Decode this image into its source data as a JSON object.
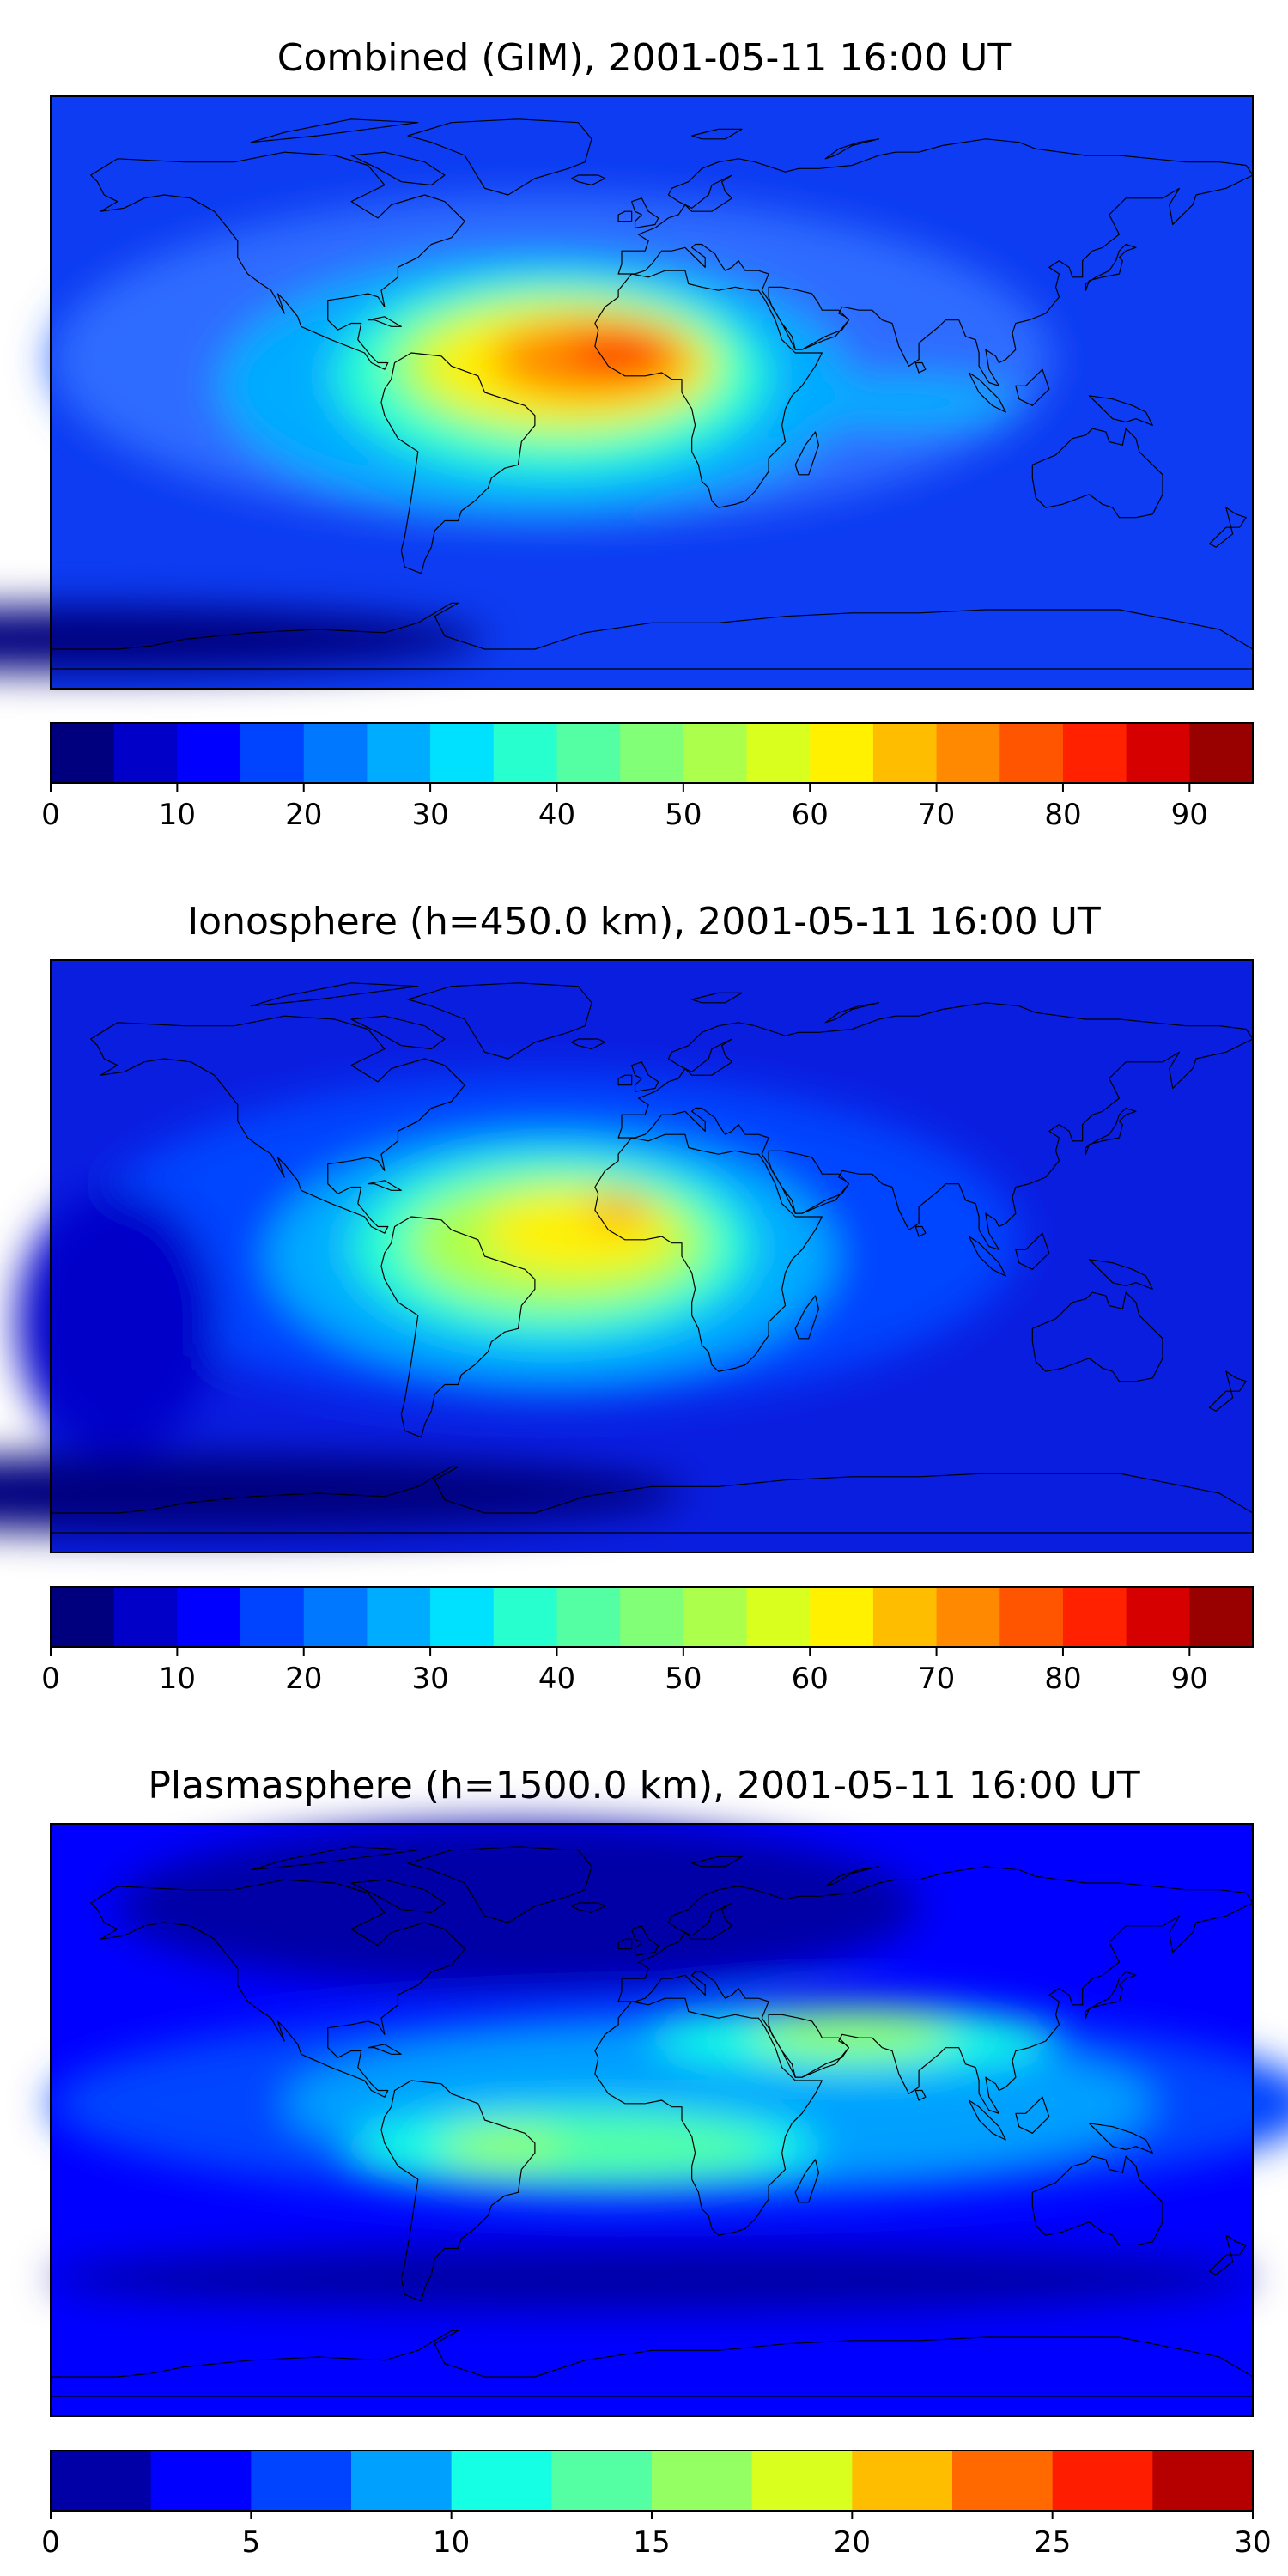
{
  "panels": [
    {
      "title": "Combined (GIM), 2001-05-11 16:00 UT",
      "colorbar": {
        "colors": [
          "#00007f",
          "#0000c9",
          "#0000ff",
          "#0044ff",
          "#0078ff",
          "#00acff",
          "#00e1ff",
          "#28ffcf",
          "#54ffa3",
          "#80ff77",
          "#acff4b",
          "#d8ff1e",
          "#fff100",
          "#ffbd00",
          "#ff8900",
          "#ff5500",
          "#ff2100",
          "#d70000",
          "#990000"
        ],
        "ticks": [
          "0",
          "10",
          "20",
          "30",
          "40",
          "50",
          "60",
          "70",
          "80",
          "90"
        ],
        "tick_values": [
          0,
          10,
          20,
          30,
          40,
          50,
          60,
          70,
          80,
          90
        ],
        "range": [
          0,
          95
        ]
      },
      "map": {
        "background": "#0d3cf2",
        "blobs": [
          {
            "c": "#2d6cff",
            "lon": -30,
            "lat": 10,
            "rlon": 150,
            "rlat": 50
          },
          {
            "c": "#00acff",
            "lon": -35,
            "lat": 2,
            "rlon": 95,
            "rlat": 40
          },
          {
            "c": "#28ffcf",
            "lon": -30,
            "lat": 5,
            "rlon": 65,
            "rlat": 30
          },
          {
            "c": "#acff4b",
            "lon": -28,
            "lat": 8,
            "rlon": 50,
            "rlat": 22
          },
          {
            "c": "#fff100",
            "lon": -25,
            "lat": 8,
            "rlon": 42,
            "rlat": 17
          },
          {
            "c": "#ff8900",
            "lon": -18,
            "lat": 10,
            "rlon": 30,
            "rlat": 12
          },
          {
            "c": "#ff2100",
            "lon": -10,
            "lat": 13,
            "rlon": 15,
            "rlat": 6
          },
          {
            "c": "#00acff",
            "lon": 75,
            "lat": -3,
            "rlon": 35,
            "rlat": 8
          },
          {
            "c": "#00007f",
            "lon": -170,
            "lat": -75,
            "rlon": 120,
            "rlat": 10
          }
        ]
      }
    },
    {
      "title": "Ionosphere  (h=450.0 km), 2001-05-11 16:00 UT",
      "colorbar": {
        "colors": [
          "#00007f",
          "#0000c9",
          "#0000ff",
          "#0044ff",
          "#0078ff",
          "#00acff",
          "#00e1ff",
          "#28ffcf",
          "#54ffa3",
          "#80ff77",
          "#acff4b",
          "#d8ff1e",
          "#fff100",
          "#ffbd00",
          "#ff8900",
          "#ff5500",
          "#ff2100",
          "#d70000",
          "#990000"
        ],
        "ticks": [
          "0",
          "10",
          "20",
          "30",
          "40",
          "50",
          "60",
          "70",
          "80",
          "90"
        ],
        "tick_values": [
          0,
          10,
          20,
          30,
          40,
          50,
          60,
          70,
          80,
          90
        ],
        "range": [
          0,
          95
        ]
      },
      "map": {
        "background": "#0a1ee0",
        "blobs": [
          {
            "c": "#0044ff",
            "lon": -30,
            "lat": 5,
            "rlon": 140,
            "rlat": 50
          },
          {
            "c": "#00acff",
            "lon": -30,
            "lat": 0,
            "rlon": 85,
            "rlat": 38
          },
          {
            "c": "#28ffcf",
            "lon": -30,
            "lat": 3,
            "rlon": 60,
            "rlat": 28
          },
          {
            "c": "#acff4b",
            "lon": -28,
            "lat": 4,
            "rlon": 45,
            "rlat": 20
          },
          {
            "c": "#fff100",
            "lon": -22,
            "lat": 7,
            "rlon": 28,
            "rlat": 12
          },
          {
            "c": "#ff8900",
            "lon": -10,
            "lat": 14,
            "rlon": 10,
            "rlat": 4
          },
          {
            "c": "#0000c9",
            "lon": -160,
            "lat": -20,
            "rlon": 30,
            "rlat": 40
          },
          {
            "c": "#00007f",
            "lon": -140,
            "lat": -72,
            "rlon": 150,
            "rlat": 12
          }
        ]
      }
    },
    {
      "title": "Plasmasphere (h=1500.0 km), 2001-05-11 16:00 UT",
      "colorbar": {
        "colors": [
          "#0000a6",
          "#0000ff",
          "#0044ff",
          "#00a0ff",
          "#14ffe3",
          "#54ffa3",
          "#94ff63",
          "#d8ff1e",
          "#ffbd00",
          "#ff6900",
          "#ff1d00",
          "#b60000"
        ],
        "ticks": [
          "0",
          "5",
          "10",
          "15",
          "20",
          "25",
          "30"
        ],
        "tick_values": [
          0,
          5,
          10,
          15,
          20,
          25,
          30
        ],
        "range": [
          0,
          30
        ]
      },
      "map": {
        "background": "#0000ff",
        "blobs": [
          {
            "c": "#0000a6",
            "lon": -40,
            "lat": 65,
            "rlon": 120,
            "rlat": 25
          },
          {
            "c": "#0000a6",
            "lon": 0,
            "lat": -48,
            "rlon": 180,
            "rlat": 10
          },
          {
            "c": "#0044ff",
            "lon": 10,
            "lat": 5,
            "rlon": 190,
            "rlat": 30
          },
          {
            "c": "#00a0ff",
            "lon": 20,
            "lat": 5,
            "rlon": 130,
            "rlat": 24
          },
          {
            "c": "#14ffe3",
            "lon": -20,
            "lat": -8,
            "rlon": 70,
            "rlat": 12
          },
          {
            "c": "#14ffe3",
            "lon": 60,
            "lat": 25,
            "rlon": 60,
            "rlat": 10
          },
          {
            "c": "#54ffa3",
            "lon": -15,
            "lat": -8,
            "rlon": 50,
            "rlat": 9
          },
          {
            "c": "#94ff63",
            "lon": -45,
            "lat": -8,
            "rlon": 18,
            "rlat": 6
          },
          {
            "c": "#94ff63",
            "lon": 60,
            "lat": 26,
            "rlon": 30,
            "rlat": 7
          }
        ]
      }
    }
  ]
}
